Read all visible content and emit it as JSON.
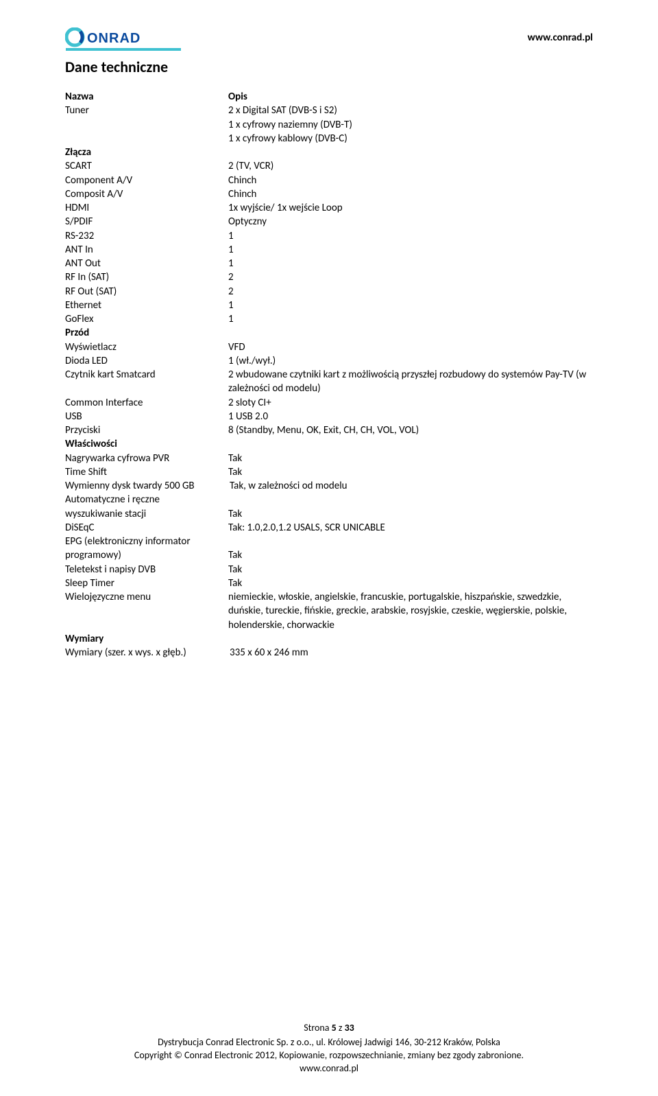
{
  "header": {
    "logo_text": "ONRAD",
    "url": "www.conrad.pl"
  },
  "section_title": "Dane techniczne",
  "columns": {
    "name": "Nazwa",
    "desc": "Opis"
  },
  "rows": [
    {
      "label": "Tuner",
      "value": "2 x Digital SAT (DVB-S i S2)"
    },
    {
      "label": "",
      "value": "1 x cyfrowy naziemny (DVB-T)"
    },
    {
      "label": "",
      "value": "1 x cyfrowy kablowy (DVB-C)"
    },
    {
      "label": "Złącza",
      "value": "",
      "bold_label": true
    },
    {
      "label": "SCART",
      "value": "2 (TV, VCR)"
    },
    {
      "label": "Component A/V",
      "value": "Chinch"
    },
    {
      "label": "Composit A/V",
      "value": "Chinch"
    },
    {
      "label": "HDMI",
      "value": "1x wyjście/ 1x wejście Loop"
    },
    {
      "label": "S/PDIF",
      "value": "Optyczny"
    },
    {
      "label": "RS-232",
      "value": "1"
    },
    {
      "label": "ANT In",
      "value": "1"
    },
    {
      "label": "ANT Out",
      "value": "1"
    },
    {
      "label": "RF In (SAT)",
      "value": "2"
    },
    {
      "label": "RF Out (SAT)",
      "value": "2"
    },
    {
      "label": "Ethernet",
      "value": "1"
    },
    {
      "label": "GoFlex",
      "value": "1"
    },
    {
      "label": "Przód",
      "value": "",
      "bold_label": true
    },
    {
      "label": "Wyświetlacz",
      "value": "VFD"
    },
    {
      "label": "Dioda LED",
      "value": "1 (wł./wył.)"
    },
    {
      "label": "Czytnik kart Smatcard",
      "value": "2 wbudowane czytniki kart z możliwością przyszłej rozbudowy do systemów Pay-TV (w zależności od modelu)"
    },
    {
      "label": "Common Interface",
      "value": "2 sloty CI+"
    },
    {
      "label": "USB",
      "value": "1 USB 2.0"
    },
    {
      "label": "Przyciski",
      "value": "8 (Standby, Menu, OK, Exit, CH, CH, VOL, VOL)"
    },
    {
      "label": "Właściwości",
      "value": "",
      "bold_label": true
    },
    {
      "label": "Nagrywarka cyfrowa PVR",
      "value": "Tak"
    },
    {
      "label": "Time Shift",
      "value": "Tak"
    },
    {
      "label": "Wymienny dysk twardy 500 GB",
      "value": "Tak, w zależności od modelu",
      "wide_label": true
    },
    {
      "label": "Automatyczne i ręczne wyszukiwanie stacji",
      "value": "Tak",
      "multi": true
    },
    {
      "label": "DiSEqC",
      "value": "Tak: 1.0,2.0,1.2 USALS, SCR UNICABLE"
    },
    {
      "label": "EPG (elektroniczny informator programowy)",
      "value": "Tak",
      "multi": true
    },
    {
      "label": "Teletekst i napisy DVB",
      "value": "Tak"
    },
    {
      "label": "Sleep Timer",
      "value": "Tak"
    },
    {
      "label": "Wielojęzyczne menu",
      "value": "niemieckie, włoskie, angielskie, francuskie, portugalskie, hiszpańskie, szwedzkie, duńskie, tureckie, fińskie, greckie, arabskie, rosyjskie, czeskie, węgierskie, polskie, holenderskie, chorwackie"
    },
    {
      "label": "Wymiary",
      "value": "",
      "bold_label": true
    },
    {
      "label": "Wymiary (szer. x wys. x głęb.)",
      "value": "335 x 60 x 246 mm",
      "wide_label": true
    }
  ],
  "footer": {
    "page_label_prefix": "Strona ",
    "page_current": "5",
    "page_sep": " z ",
    "page_total": "33",
    "line1": "Dystrybucja Conrad Electronic Sp. z o.o., ul. Królowej Jadwigi 146, 30-212 Kraków, Polska",
    "line2": "Copyright © Conrad Electronic 2012, Kopiowanie, rozpowszechnianie, zmiany bez zgody zabronione.",
    "line3": "www.conrad.pl"
  },
  "colors": {
    "logo_blue": "#0a4a9e",
    "logo_cyan": "#3fc1d1",
    "text": "#000000",
    "background": "#ffffff"
  }
}
